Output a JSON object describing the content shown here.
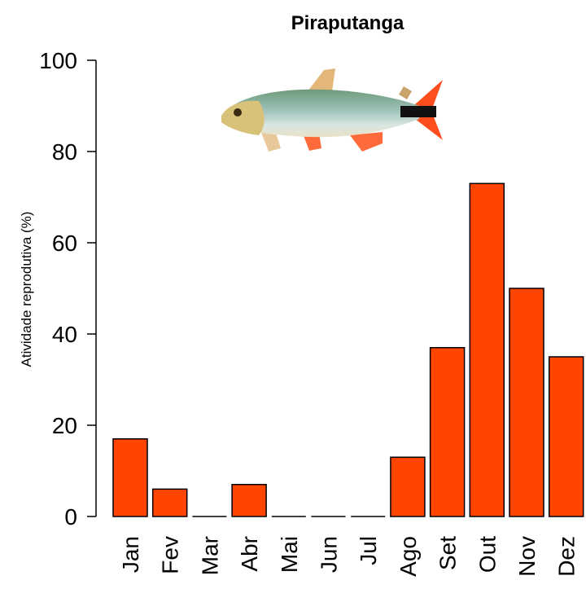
{
  "chart_data": {
    "type": "bar",
    "title": "Piraputanga",
    "y_label": "Atividade reprodutiva (%)",
    "categories": [
      "Jan",
      "Fev",
      "Mar",
      "Abr",
      "Mai",
      "Jun",
      "Jul",
      "Ago",
      "Set",
      "Out",
      "Nov",
      "Dez"
    ],
    "values": [
      17,
      6,
      0,
      7,
      0,
      0,
      0,
      13,
      37,
      73,
      50,
      35
    ],
    "color": "#ff4500",
    "ylim": [
      0,
      100
    ],
    "yticks": [
      0,
      20,
      40,
      60,
      80,
      100
    ],
    "grid": false
  }
}
